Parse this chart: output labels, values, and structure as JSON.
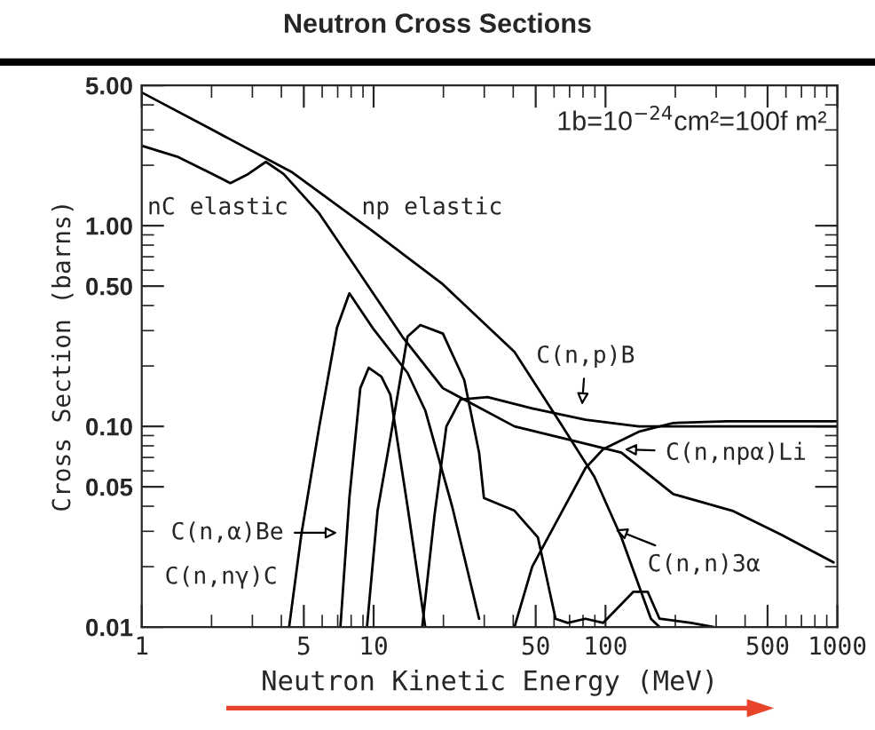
{
  "chart_data": {
    "type": "line",
    "title": "Neutron Cross Sections",
    "xlabel": "Neutron Kinetic Energy (MeV)",
    "ylabel": "Cross Section (barns)",
    "log": "xy",
    "xlim": [
      1,
      1000
    ],
    "ylim": [
      0.01,
      5
    ],
    "xticks": [
      1,
      5,
      10,
      50,
      100,
      500,
      1000
    ],
    "yticks": [
      {
        "value": 0.01,
        "label": "0.01"
      },
      {
        "value": 0.05,
        "label": "0.05"
      },
      {
        "value": 0.1,
        "label": "0.10"
      },
      {
        "value": 0.5,
        "label": "0.50"
      },
      {
        "value": 1,
        "label": "1.00"
      },
      {
        "value": 5,
        "label": "5.00"
      }
    ],
    "series": [
      {
        "color": "#000000",
        "x": [
          1,
          2.02,
          4.47,
          9.89,
          19.9,
          40.5,
          65.2,
          89.6,
          117,
          157,
          171
        ],
        "values": [
          4.61,
          3.0,
          1.84,
          0.94,
          0.51,
          0.235,
          0.1,
          0.056,
          0.028,
          0.011,
          0.01
        ]
      },
      {
        "color": "#000000",
        "x": [
          1,
          1.42,
          2.02,
          2.41,
          2.88,
          3.43,
          4.09,
          5.83,
          8.29,
          13.3,
          19.9,
          40.5,
          82.0,
          117,
          196,
          352,
          567,
          963
        ],
        "values": [
          2.5,
          2.21,
          1.81,
          1.63,
          1.81,
          2.08,
          1.81,
          1.15,
          0.63,
          0.28,
          0.155,
          0.1,
          0.082,
          0.074,
          0.046,
          0.038,
          0.029,
          0.021
        ]
      },
      {
        "color": "#000000",
        "x": [
          4.32,
          4.88,
          5.83,
          6.95,
          7.86,
          9.89,
          14.0,
          16.7,
          21.8,
          28.5
        ],
        "values": [
          0.01,
          0.029,
          0.1,
          0.31,
          0.46,
          0.31,
          0.185,
          0.12,
          0.04,
          0.011
        ]
      },
      {
        "color": "#000000",
        "x": [
          7.19,
          7.86,
          8.76,
          9.53,
          10.8,
          11.8,
          14.0,
          16.7
        ],
        "values": [
          0.01,
          0.044,
          0.155,
          0.196,
          0.177,
          0.144,
          0.04,
          0.01
        ]
      },
      {
        "color": "#000000",
        "x": [
          9.36,
          10.4,
          11.8,
          14.0,
          15.9,
          19.9,
          24.6,
          28.5,
          29.9,
          40.5,
          51.1,
          60.9,
          68.7,
          82.0,
          97.8,
          132,
          152,
          171,
          234,
          294
        ],
        "values": [
          0.01,
          0.038,
          0.087,
          0.28,
          0.32,
          0.29,
          0.17,
          0.074,
          0.044,
          0.038,
          0.028,
          0.011,
          0.0105,
          0.011,
          0.0105,
          0.015,
          0.015,
          0.011,
          0.0105,
          0.01
        ]
      },
      {
        "color": "#000000",
        "x": [
          16.2,
          18.3,
          20.6,
          23.7,
          31.0,
          48.3,
          82.0,
          139,
          279,
          1000
        ],
        "values": [
          0.01,
          0.036,
          0.1,
          0.136,
          0.14,
          0.123,
          0.108,
          0.1,
          0.1,
          0.1
        ]
      },
      {
        "color": "#000000",
        "x": [
          40.5,
          48.3,
          65.2,
          82.0,
          97.8,
          139,
          196,
          334,
          1000
        ],
        "values": [
          0.01,
          0.02,
          0.038,
          0.062,
          0.077,
          0.094,
          0.104,
          0.106,
          0.106
        ]
      }
    ],
    "annotations": [
      "nC elastic",
      "np elastic",
      "1b=10$^{−24}$cm²=100f m²",
      "C(n,p)B",
      "C(n,npα)Li",
      "C(n,n)3α",
      "C(n,α)Be",
      "C(n,nγ)C"
    ]
  }
}
